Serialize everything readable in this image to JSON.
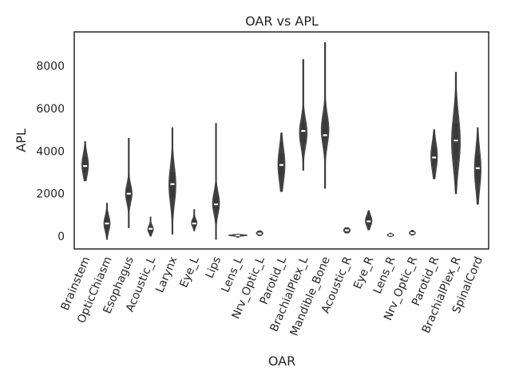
{
  "chart_data": {
    "type": "violin",
    "title": "OAR vs APL",
    "xlabel": "OAR",
    "ylabel": "APL",
    "ylim": [
      -600,
      9600
    ],
    "yticks": [
      0,
      2000,
      4000,
      6000,
      8000
    ],
    "ytick_labels": [
      "0",
      "2000",
      "4000",
      "6000",
      "8000"
    ],
    "grid": false,
    "violin_color": "#474747",
    "median_color": "#ffffff",
    "categories": [
      "Brainstem",
      "OpticChiasm",
      "Esophagus",
      "Acoustic_L",
      "Larynx",
      "Eye_L",
      "Lips",
      "Lens_L",
      "Nrv_Optic_L",
      "Parotid_L",
      "BrachialPlex_L",
      "Mandible_Bone",
      "Acoustic_R",
      "Eye_R",
      "Lens_R",
      "Nrv_Optic_R",
      "Parotid_R",
      "BrachialPlex_R",
      "SpinalCord"
    ],
    "series": [
      {
        "min": 2600,
        "q1": 3000,
        "median": 3300,
        "q3": 3700,
        "max": 4450,
        "width": 0.3
      },
      {
        "min": -150,
        "q1": 350,
        "median": 600,
        "q3": 850,
        "max": 1550,
        "width": 0.28
      },
      {
        "min": 400,
        "q1": 1700,
        "median": 2000,
        "q3": 2300,
        "max": 4600,
        "width": 0.3
      },
      {
        "min": 0,
        "q1": 200,
        "median": 350,
        "q3": 450,
        "max": 900,
        "width": 0.25
      },
      {
        "min": 100,
        "q1": 1800,
        "median": 2450,
        "q3": 3000,
        "max": 5100,
        "width": 0.32
      },
      {
        "min": 250,
        "q1": 500,
        "median": 600,
        "q3": 750,
        "max": 1250,
        "width": 0.25
      },
      {
        "min": -150,
        "q1": 1200,
        "median": 1500,
        "q3": 1900,
        "max": 5300,
        "width": 0.32
      },
      {
        "min": -50,
        "q1": 20,
        "median": 40,
        "q3": 60,
        "max": 100,
        "width": 0.85
      },
      {
        "min": 30,
        "q1": 80,
        "median": 130,
        "q3": 200,
        "max": 250,
        "width": 0.3
      },
      {
        "min": 2100,
        "q1": 2800,
        "median": 3350,
        "q3": 3900,
        "max": 4850,
        "width": 0.32
      },
      {
        "min": 3100,
        "q1": 4400,
        "median": 4950,
        "q3": 5300,
        "max": 8300,
        "width": 0.35
      },
      {
        "min": 2250,
        "q1": 4500,
        "median": 4750,
        "q3": 5500,
        "max": 9100,
        "width": 0.35
      },
      {
        "min": 150,
        "q1": 200,
        "median": 280,
        "q3": 350,
        "max": 400,
        "width": 0.3
      },
      {
        "min": 300,
        "q1": 550,
        "median": 700,
        "q3": 900,
        "max": 1200,
        "width": 0.3
      },
      {
        "min": -20,
        "q1": 20,
        "median": 60,
        "q3": 90,
        "max": 140,
        "width": 0.3
      },
      {
        "min": 50,
        "q1": 100,
        "median": 150,
        "q3": 200,
        "max": 280,
        "width": 0.28
      },
      {
        "min": 2700,
        "q1": 3300,
        "median": 3700,
        "q3": 4200,
        "max": 5000,
        "width": 0.3
      },
      {
        "min": 2000,
        "q1": 3600,
        "median": 4500,
        "q3": 5300,
        "max": 7700,
        "width": 0.4
      },
      {
        "min": 1500,
        "q1": 2500,
        "median": 3200,
        "q3": 3800,
        "max": 5100,
        "width": 0.3
      }
    ]
  }
}
